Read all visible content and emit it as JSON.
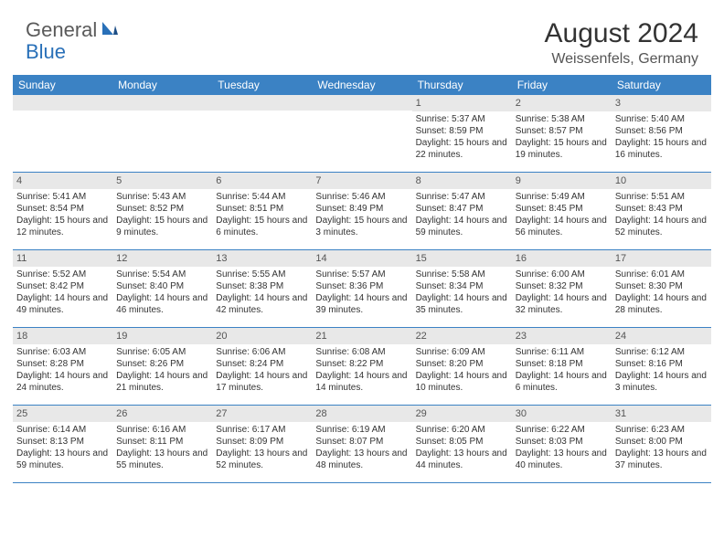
{
  "logo": {
    "general": "General",
    "blue": "Blue"
  },
  "title": "August 2024",
  "location": "Weissenfels, Germany",
  "dayHeaders": [
    "Sunday",
    "Monday",
    "Tuesday",
    "Wednesday",
    "Thursday",
    "Friday",
    "Saturday"
  ],
  "colors": {
    "headerBar": "#3b82c4",
    "dayNumBar": "#e8e8e8",
    "text": "#333333",
    "logoBlue": "#2970b8",
    "logoGray": "#5a5a5a"
  },
  "weeks": [
    [
      {
        "n": "",
        "sr": "",
        "ss": "",
        "dl": ""
      },
      {
        "n": "",
        "sr": "",
        "ss": "",
        "dl": ""
      },
      {
        "n": "",
        "sr": "",
        "ss": "",
        "dl": ""
      },
      {
        "n": "",
        "sr": "",
        "ss": "",
        "dl": ""
      },
      {
        "n": "1",
        "sr": "Sunrise: 5:37 AM",
        "ss": "Sunset: 8:59 PM",
        "dl": "Daylight: 15 hours and 22 minutes."
      },
      {
        "n": "2",
        "sr": "Sunrise: 5:38 AM",
        "ss": "Sunset: 8:57 PM",
        "dl": "Daylight: 15 hours and 19 minutes."
      },
      {
        "n": "3",
        "sr": "Sunrise: 5:40 AM",
        "ss": "Sunset: 8:56 PM",
        "dl": "Daylight: 15 hours and 16 minutes."
      }
    ],
    [
      {
        "n": "4",
        "sr": "Sunrise: 5:41 AM",
        "ss": "Sunset: 8:54 PM",
        "dl": "Daylight: 15 hours and 12 minutes."
      },
      {
        "n": "5",
        "sr": "Sunrise: 5:43 AM",
        "ss": "Sunset: 8:52 PM",
        "dl": "Daylight: 15 hours and 9 minutes."
      },
      {
        "n": "6",
        "sr": "Sunrise: 5:44 AM",
        "ss": "Sunset: 8:51 PM",
        "dl": "Daylight: 15 hours and 6 minutes."
      },
      {
        "n": "7",
        "sr": "Sunrise: 5:46 AM",
        "ss": "Sunset: 8:49 PM",
        "dl": "Daylight: 15 hours and 3 minutes."
      },
      {
        "n": "8",
        "sr": "Sunrise: 5:47 AM",
        "ss": "Sunset: 8:47 PM",
        "dl": "Daylight: 14 hours and 59 minutes."
      },
      {
        "n": "9",
        "sr": "Sunrise: 5:49 AM",
        "ss": "Sunset: 8:45 PM",
        "dl": "Daylight: 14 hours and 56 minutes."
      },
      {
        "n": "10",
        "sr": "Sunrise: 5:51 AM",
        "ss": "Sunset: 8:43 PM",
        "dl": "Daylight: 14 hours and 52 minutes."
      }
    ],
    [
      {
        "n": "11",
        "sr": "Sunrise: 5:52 AM",
        "ss": "Sunset: 8:42 PM",
        "dl": "Daylight: 14 hours and 49 minutes."
      },
      {
        "n": "12",
        "sr": "Sunrise: 5:54 AM",
        "ss": "Sunset: 8:40 PM",
        "dl": "Daylight: 14 hours and 46 minutes."
      },
      {
        "n": "13",
        "sr": "Sunrise: 5:55 AM",
        "ss": "Sunset: 8:38 PM",
        "dl": "Daylight: 14 hours and 42 minutes."
      },
      {
        "n": "14",
        "sr": "Sunrise: 5:57 AM",
        "ss": "Sunset: 8:36 PM",
        "dl": "Daylight: 14 hours and 39 minutes."
      },
      {
        "n": "15",
        "sr": "Sunrise: 5:58 AM",
        "ss": "Sunset: 8:34 PM",
        "dl": "Daylight: 14 hours and 35 minutes."
      },
      {
        "n": "16",
        "sr": "Sunrise: 6:00 AM",
        "ss": "Sunset: 8:32 PM",
        "dl": "Daylight: 14 hours and 32 minutes."
      },
      {
        "n": "17",
        "sr": "Sunrise: 6:01 AM",
        "ss": "Sunset: 8:30 PM",
        "dl": "Daylight: 14 hours and 28 minutes."
      }
    ],
    [
      {
        "n": "18",
        "sr": "Sunrise: 6:03 AM",
        "ss": "Sunset: 8:28 PM",
        "dl": "Daylight: 14 hours and 24 minutes."
      },
      {
        "n": "19",
        "sr": "Sunrise: 6:05 AM",
        "ss": "Sunset: 8:26 PM",
        "dl": "Daylight: 14 hours and 21 minutes."
      },
      {
        "n": "20",
        "sr": "Sunrise: 6:06 AM",
        "ss": "Sunset: 8:24 PM",
        "dl": "Daylight: 14 hours and 17 minutes."
      },
      {
        "n": "21",
        "sr": "Sunrise: 6:08 AM",
        "ss": "Sunset: 8:22 PM",
        "dl": "Daylight: 14 hours and 14 minutes."
      },
      {
        "n": "22",
        "sr": "Sunrise: 6:09 AM",
        "ss": "Sunset: 8:20 PM",
        "dl": "Daylight: 14 hours and 10 minutes."
      },
      {
        "n": "23",
        "sr": "Sunrise: 6:11 AM",
        "ss": "Sunset: 8:18 PM",
        "dl": "Daylight: 14 hours and 6 minutes."
      },
      {
        "n": "24",
        "sr": "Sunrise: 6:12 AM",
        "ss": "Sunset: 8:16 PM",
        "dl": "Daylight: 14 hours and 3 minutes."
      }
    ],
    [
      {
        "n": "25",
        "sr": "Sunrise: 6:14 AM",
        "ss": "Sunset: 8:13 PM",
        "dl": "Daylight: 13 hours and 59 minutes."
      },
      {
        "n": "26",
        "sr": "Sunrise: 6:16 AM",
        "ss": "Sunset: 8:11 PM",
        "dl": "Daylight: 13 hours and 55 minutes."
      },
      {
        "n": "27",
        "sr": "Sunrise: 6:17 AM",
        "ss": "Sunset: 8:09 PM",
        "dl": "Daylight: 13 hours and 52 minutes."
      },
      {
        "n": "28",
        "sr": "Sunrise: 6:19 AM",
        "ss": "Sunset: 8:07 PM",
        "dl": "Daylight: 13 hours and 48 minutes."
      },
      {
        "n": "29",
        "sr": "Sunrise: 6:20 AM",
        "ss": "Sunset: 8:05 PM",
        "dl": "Daylight: 13 hours and 44 minutes."
      },
      {
        "n": "30",
        "sr": "Sunrise: 6:22 AM",
        "ss": "Sunset: 8:03 PM",
        "dl": "Daylight: 13 hours and 40 minutes."
      },
      {
        "n": "31",
        "sr": "Sunrise: 6:23 AM",
        "ss": "Sunset: 8:00 PM",
        "dl": "Daylight: 13 hours and 37 minutes."
      }
    ]
  ]
}
